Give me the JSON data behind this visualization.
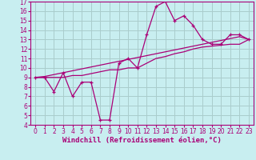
{
  "title": "",
  "xlabel": "Windchill (Refroidissement éolien,°C)",
  "bg_color": "#c8eef0",
  "line_color": "#aa0077",
  "grid_color": "#aacccc",
  "xlim": [
    -0.5,
    23.5
  ],
  "ylim": [
    4,
    17
  ],
  "xticks": [
    0,
    1,
    2,
    3,
    4,
    5,
    6,
    7,
    8,
    9,
    10,
    11,
    12,
    13,
    14,
    15,
    16,
    17,
    18,
    19,
    20,
    21,
    22,
    23
  ],
  "yticks": [
    4,
    5,
    6,
    7,
    8,
    9,
    10,
    11,
    12,
    13,
    14,
    15,
    16,
    17
  ],
  "curve1_x": [
    0,
    1,
    2,
    3,
    4,
    5,
    6,
    7,
    8,
    9,
    10,
    11,
    12,
    13,
    14,
    15,
    16,
    17,
    18,
    19,
    20,
    21,
    22,
    23
  ],
  "curve1_y": [
    9,
    9,
    7.5,
    9.5,
    7,
    8.5,
    8.5,
    4.5,
    4.5,
    10.5,
    11,
    10,
    13.5,
    16.5,
    17,
    15,
    15.5,
    14.5,
    13,
    12.5,
    12.5,
    13.5,
    13.5,
    13
  ],
  "curve2_x": [
    0,
    1,
    2,
    3,
    4,
    5,
    6,
    7,
    8,
    9,
    10,
    11,
    12,
    13,
    14,
    15,
    16,
    17,
    18,
    19,
    20,
    21,
    22,
    23
  ],
  "curve2_y": [
    9.0,
    9.1,
    9.3,
    9.5,
    9.7,
    9.9,
    10.1,
    10.3,
    10.5,
    10.7,
    10.9,
    11.1,
    11.3,
    11.5,
    11.7,
    11.9,
    12.1,
    12.3,
    12.5,
    12.7,
    12.9,
    13.1,
    13.3,
    13.0
  ],
  "curve3_x": [
    0,
    1,
    2,
    3,
    4,
    5,
    6,
    7,
    8,
    9,
    10,
    11,
    12,
    13,
    14,
    15,
    16,
    17,
    18,
    19,
    20,
    21,
    22,
    23
  ],
  "curve3_y": [
    9.0,
    9.0,
    9.0,
    9.0,
    9.2,
    9.2,
    9.4,
    9.6,
    9.8,
    9.8,
    10.0,
    10.0,
    10.5,
    11.0,
    11.2,
    11.5,
    11.7,
    12.0,
    12.2,
    12.3,
    12.4,
    12.5,
    12.5,
    13.0
  ],
  "tick_fontsize": 5.5,
  "label_fontsize": 6.5
}
